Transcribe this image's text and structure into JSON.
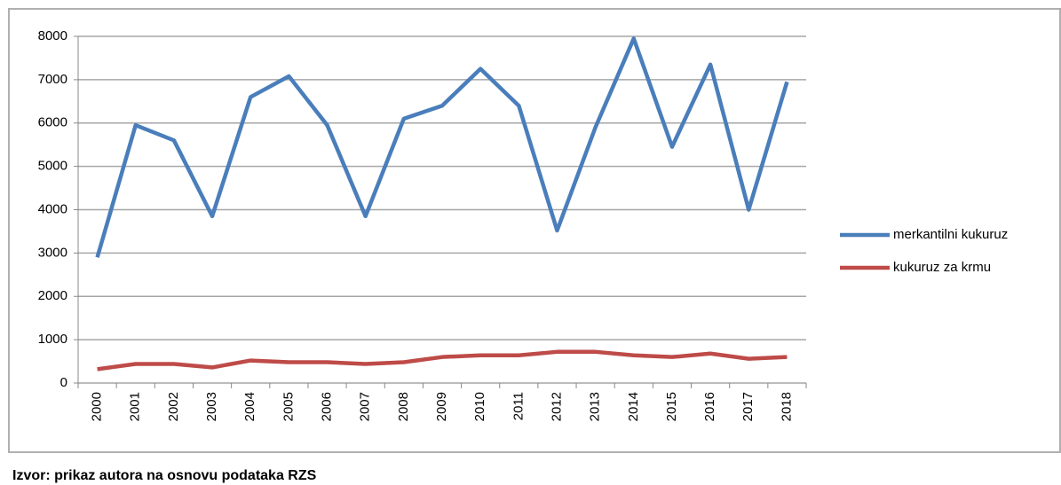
{
  "chart_data": {
    "type": "line",
    "categories": [
      "2000",
      "2001",
      "2002",
      "2003",
      "2004",
      "2005",
      "2006",
      "2007",
      "2008",
      "2009",
      "2010",
      "2011",
      "2012",
      "2013",
      "2014",
      "2015",
      "2016",
      "2017",
      "2018"
    ],
    "series": [
      {
        "name": "merkantilni kukuruz",
        "color": "#4a7ebb",
        "values": [
          2900,
          5950,
          5600,
          3850,
          6600,
          7080,
          5950,
          3850,
          6100,
          6400,
          7250,
          6400,
          3520,
          5900,
          7950,
          5450,
          7350,
          4000,
          6950
        ]
      },
      {
        "name": "kukuruz za krmu",
        "color": "#be4b48",
        "values": [
          320,
          440,
          440,
          360,
          520,
          480,
          480,
          440,
          480,
          600,
          640,
          640,
          720,
          720,
          640,
          600,
          680,
          560,
          600
        ]
      }
    ],
    "ylim": [
      0,
      8000
    ],
    "yticks": [
      0,
      1000,
      2000,
      3000,
      4000,
      5000,
      6000,
      7000,
      8000
    ],
    "grid": true,
    "legend": "right",
    "caption": "Izvor: prikaz autora na osnovu podataka RZS"
  }
}
